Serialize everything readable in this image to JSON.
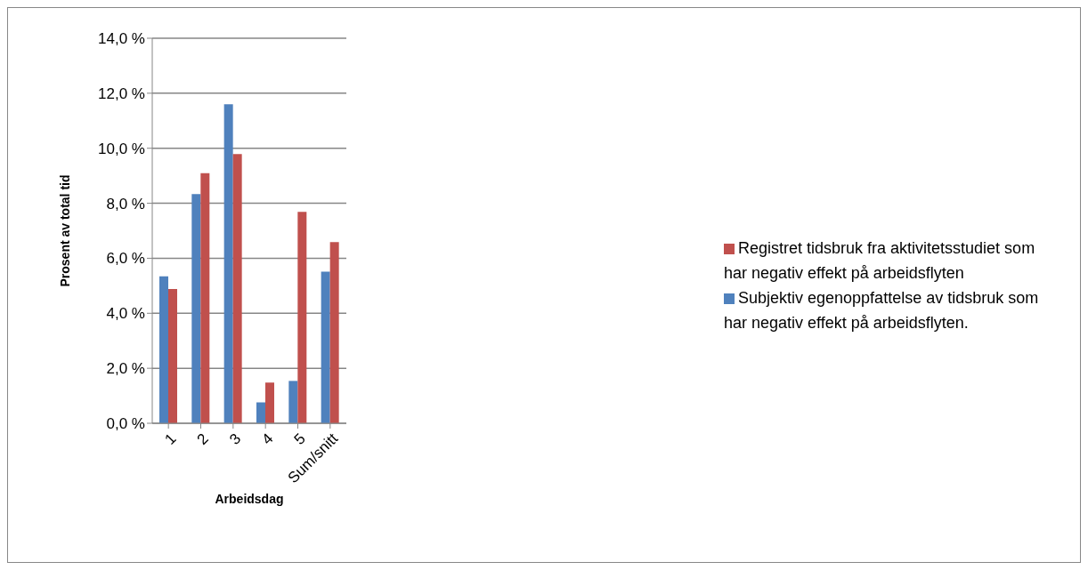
{
  "chart_data": {
    "type": "bar",
    "xlabel": "Arbeidsdag",
    "ylabel": "Prosent av total tid",
    "categories": [
      "1",
      "2",
      "3",
      "4",
      "5",
      "Sum/snitt"
    ],
    "series": [
      {
        "name": "Subjektiv egenoppfattelse av tidsbruk som har negativ effekt på arbeidsflyten.",
        "color": "#4f81bd",
        "values": [
          5.34,
          8.33,
          11.6,
          0.76,
          1.54,
          5.51
        ]
      },
      {
        "name": "Registret tidsbruk  fra aktivitetsstudiet som har negativ effekt på arbeidsflyten",
        "color": "#c0504d",
        "values": [
          4.88,
          9.09,
          9.79,
          1.48,
          7.69,
          6.59
        ]
      }
    ],
    "ylim": [
      0,
      14
    ],
    "yticks": [
      {
        "value": 0,
        "label": "0,0 %"
      },
      {
        "value": 2,
        "label": "2,0 %"
      },
      {
        "value": 4,
        "label": "4,0 %"
      },
      {
        "value": 6,
        "label": "6,0 %"
      },
      {
        "value": 8,
        "label": "8,0 %"
      },
      {
        "value": 10,
        "label": "10,0 %"
      },
      {
        "value": 12,
        "label": "12,0 %"
      },
      {
        "value": 14,
        "label": "14,0 %"
      }
    ],
    "grid": "y",
    "legend": "right"
  }
}
